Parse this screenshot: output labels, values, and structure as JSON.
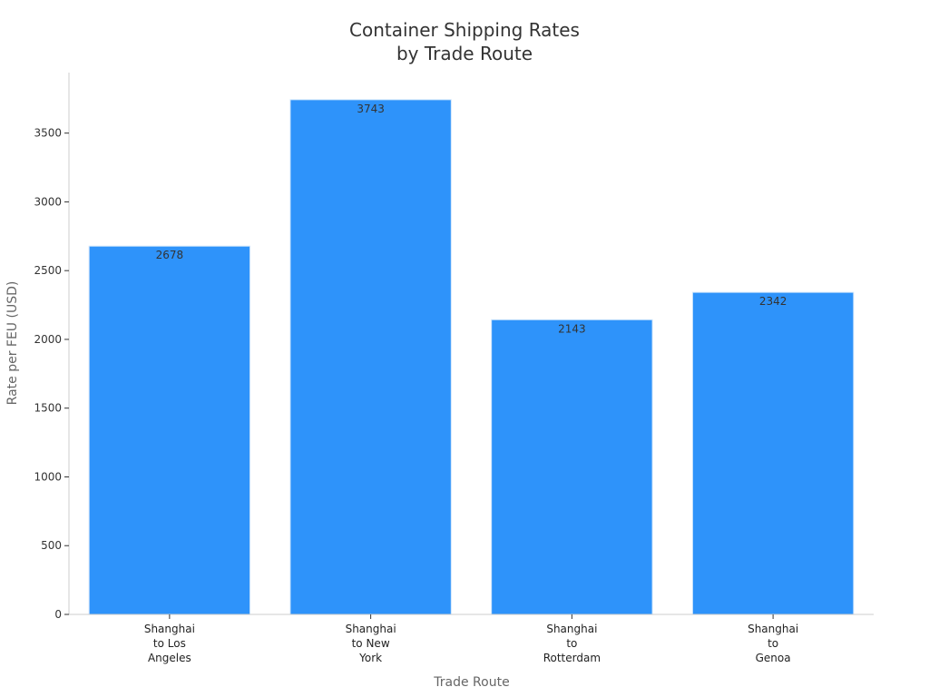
{
  "chart_data": {
    "type": "bar",
    "title_lines": [
      "Container Shipping Rates",
      "by Trade Route"
    ],
    "xlabel": "Trade Route",
    "ylabel": "Rate per FEU (USD)",
    "categories": [
      [
        "Shanghai",
        "to Los",
        "Angeles"
      ],
      [
        "Shanghai",
        "to New",
        "York"
      ],
      [
        "Shanghai",
        "to",
        "Rotterdam"
      ],
      [
        "Shanghai",
        "to",
        "Genoa"
      ]
    ],
    "values": [
      2678,
      3743,
      2143,
      2342
    ],
    "data_labels": [
      "2678",
      "3743",
      "2143",
      "2342"
    ],
    "ylim": [
      0,
      3940
    ],
    "yticks": [
      0,
      500,
      1000,
      1500,
      2000,
      2500,
      3000,
      3500
    ],
    "grid": false,
    "legend": "none",
    "bar_color": "#2e93fa",
    "bar_edge_color": "#d0e6fb"
  }
}
